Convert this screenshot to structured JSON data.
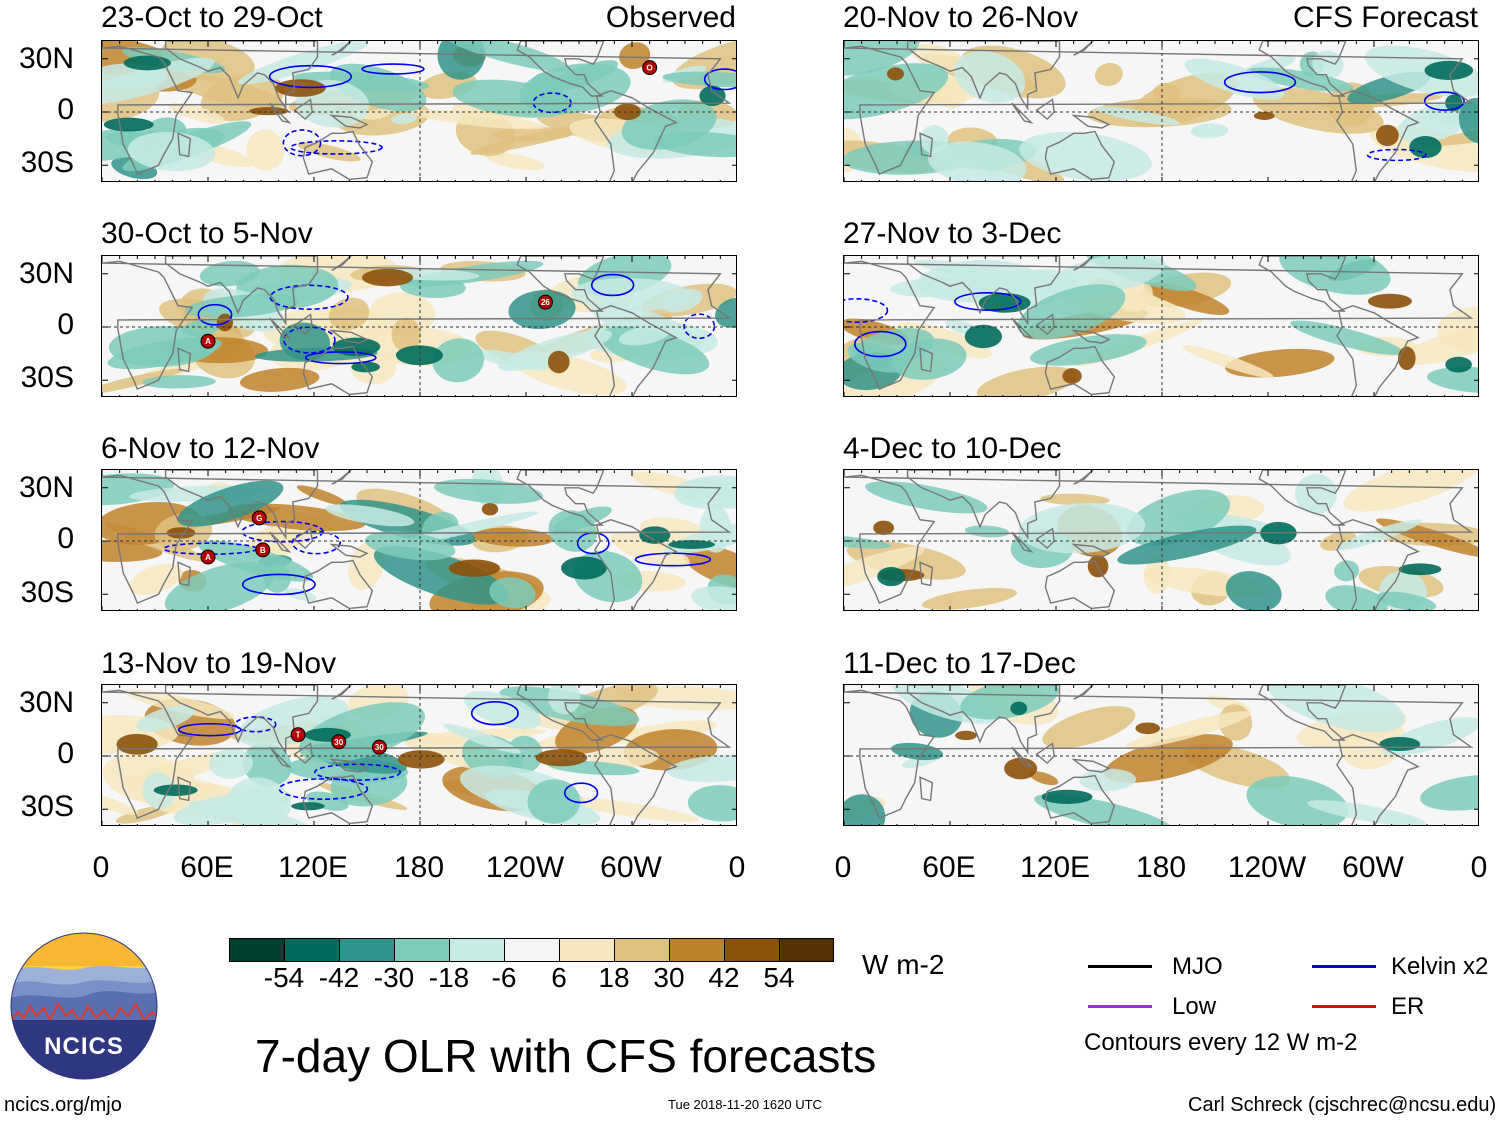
{
  "title": "7-day OLR with CFS forecasts",
  "units": "W m-2",
  "contour_note": "Contours every 12 W m-2",
  "footer": {
    "left": "ncics.org/mjo",
    "center": "Tue 2018-11-20 1620 UTC",
    "right": "Carl Schreck (cjschrec@ncsu.edu)"
  },
  "logo": {
    "text": "NCICS"
  },
  "column_labels": {
    "observed": "Observed",
    "forecast": "CFS Forecast"
  },
  "lat_labels": [
    "30N",
    "0",
    "30S"
  ],
  "lon_labels": [
    "0",
    "60E",
    "120E",
    "180",
    "120W",
    "60W",
    "0"
  ],
  "panels": {
    "observed": [
      {
        "title": "23-Oct to 29-Oct",
        "storms": [
          {
            "label": "O",
            "lon": 310,
            "lat": 25
          }
        ]
      },
      {
        "title": "30-Oct to 5-Nov",
        "storms": [
          {
            "label": "A",
            "lon": 60,
            "lat": -8
          },
          {
            "label": "26",
            "lon": 251,
            "lat": 14
          }
        ]
      },
      {
        "title": "6-Nov to 12-Nov",
        "storms": [
          {
            "label": "G",
            "lon": 89,
            "lat": 13
          },
          {
            "label": "A",
            "lon": 60,
            "lat": -9
          },
          {
            "label": "B",
            "lon": 91,
            "lat": -5
          }
        ]
      },
      {
        "title": "13-Nov to 19-Nov",
        "storms": [
          {
            "label": "T",
            "lon": 111,
            "lat": 12
          },
          {
            "label": "30",
            "lon": 134,
            "lat": 8
          },
          {
            "label": "30",
            "lon": 157,
            "lat": 5
          }
        ]
      }
    ],
    "forecast": [
      {
        "title": "20-Nov to 26-Nov"
      },
      {
        "title": "27-Nov to 3-Dec"
      },
      {
        "title": "4-Dec to 10-Dec"
      },
      {
        "title": "11-Dec to 17-Dec"
      }
    ]
  },
  "colorbar": {
    "colors": [
      "#01402f",
      "#016b5b",
      "#31948a",
      "#7ccbbb",
      "#c7eae4",
      "#f5f5f5",
      "#f6e7c0",
      "#dfc180",
      "#bf822c",
      "#8c510a",
      "#543005"
    ],
    "ticks": [
      "-54",
      "-42",
      "-30",
      "-18",
      "-6",
      "6",
      "18",
      "30",
      "42",
      "54"
    ]
  },
  "legend": [
    {
      "label": "MJO",
      "color": "#000000"
    },
    {
      "label": "Kelvin x2",
      "color": "#0000ee"
    },
    {
      "label": "Low",
      "color": "#9932cc"
    },
    {
      "label": "ER",
      "color": "#ee0000"
    }
  ]
}
